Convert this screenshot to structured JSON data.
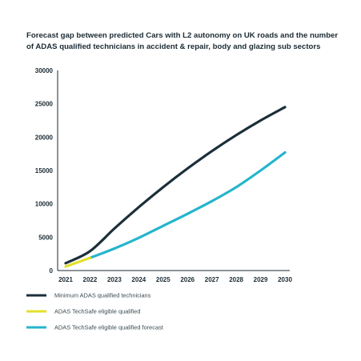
{
  "chart_data": {
    "type": "line",
    "title": "Forecast gap between predicted Cars with L2 autonomy on UK roads and the number of ADAS qualified technicians in accident & repair, body and glazing sub sectors",
    "xlabel": "",
    "ylabel": "",
    "categories": [
      "2021",
      "2022",
      "2023",
      "2024",
      "2025",
      "2026",
      "2027",
      "2028",
      "2029",
      "2030"
    ],
    "y_ticks": [
      "0",
      "5000",
      "10000",
      "15000",
      "20000",
      "25000",
      "30000"
    ],
    "ylim": [
      0,
      30000
    ],
    "grid": false,
    "legend_position": "bottom",
    "series": [
      {
        "name": "Minimum ADAS qualified technicians",
        "color": "#1b2f3a",
        "values": [
          1100,
          2900,
          6300,
          9500,
          12500,
          15300,
          17900,
          20300,
          22500,
          24500
        ]
      },
      {
        "name": "ADAS TechSafe eligible qualified",
        "color": "#e4e02a",
        "values": [
          600,
          1900,
          null,
          null,
          null,
          null,
          null,
          null,
          null,
          null
        ]
      },
      {
        "name": "ADAS TechSafe eligible qualified forecast",
        "color": "#25b5cc",
        "values": [
          null,
          1900,
          3300,
          4900,
          6700,
          8500,
          10400,
          12500,
          15000,
          17700
        ]
      }
    ]
  }
}
